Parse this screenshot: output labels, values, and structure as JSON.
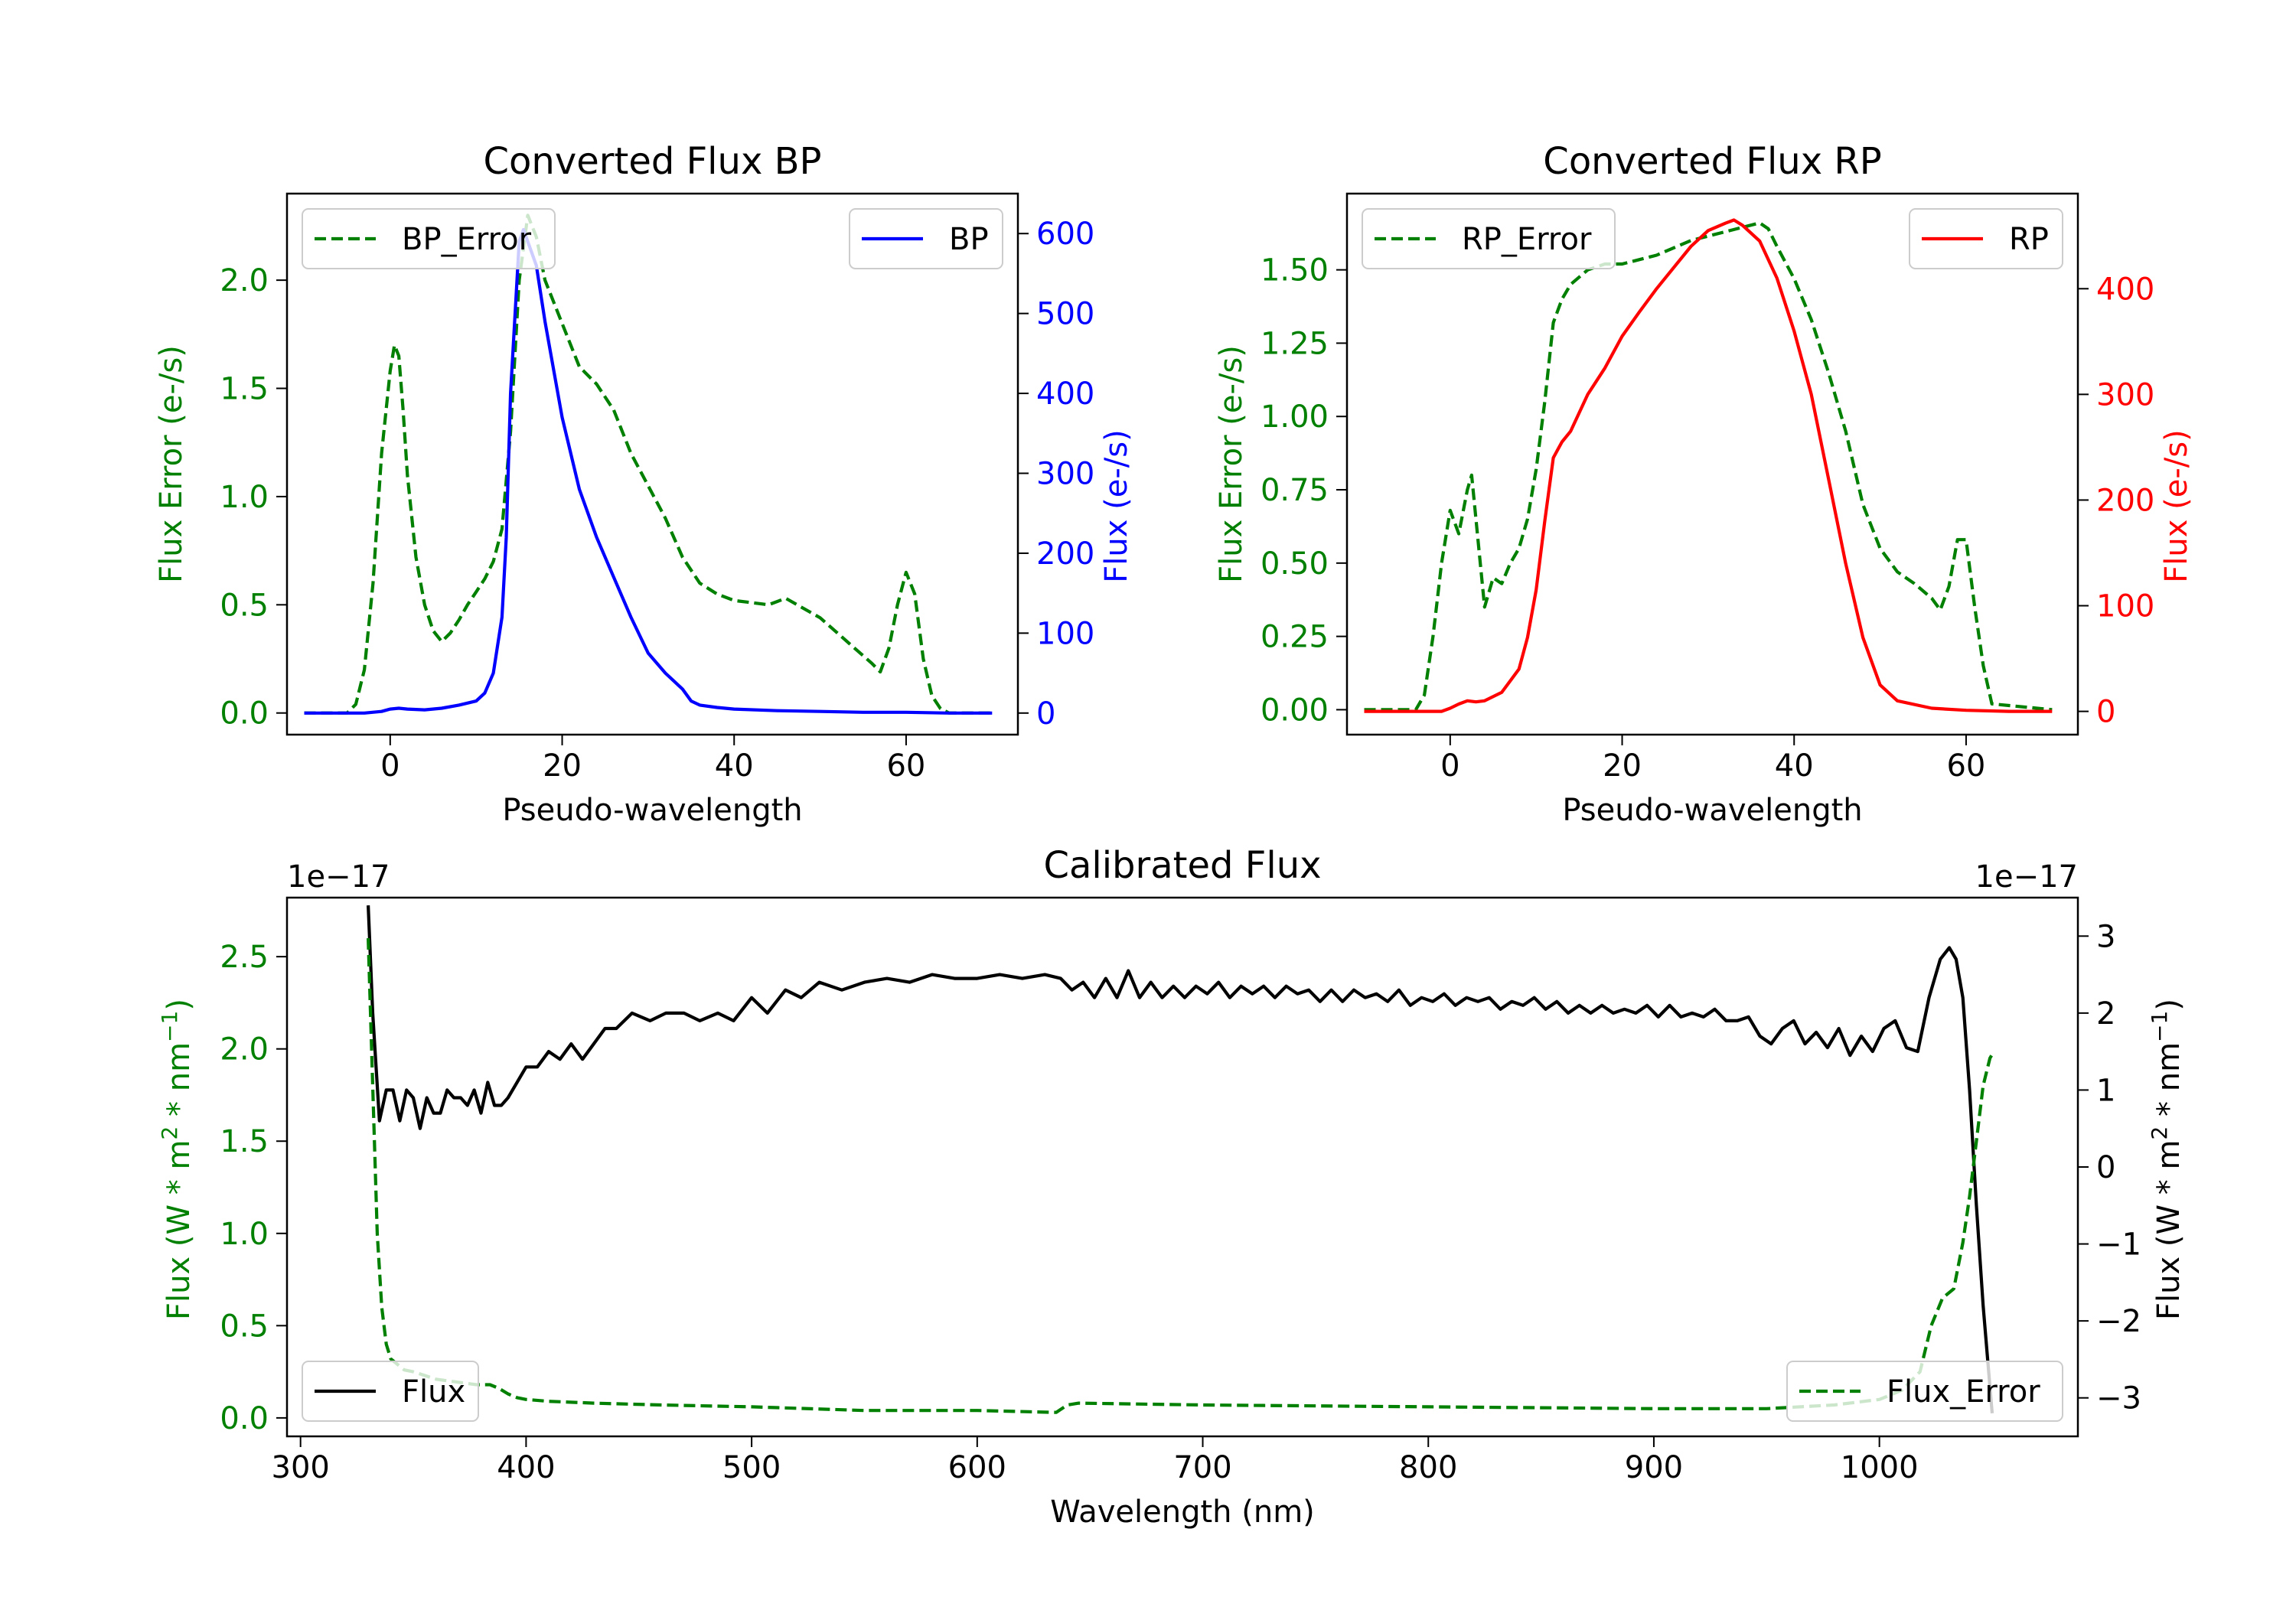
{
  "chart_data": [
    {
      "id": "bp",
      "type": "line",
      "title": "Converted Flux BP",
      "xlabel": "Pseudo-wavelength",
      "ylabel_left": "Flux Error (e-/s)",
      "ylabel_right": "Flux (e-/s)",
      "xlim": [
        -12,
        73
      ],
      "ylim_left": [
        -0.1,
        2.4
      ],
      "ylim_right": [
        -27,
        650
      ],
      "xticks": [
        0,
        20,
        40,
        60
      ],
      "yticks_left": [
        0.0,
        0.5,
        1.0,
        1.5,
        2.0
      ],
      "ytick_labels_left": [
        "0.0",
        "0.5",
        "1.0",
        "1.5",
        "2.0"
      ],
      "yticks_right": [
        0,
        100,
        200,
        300,
        400,
        500,
        600
      ],
      "ytick_labels_right": [
        "0",
        "100",
        "200",
        "300",
        "400",
        "500",
        "600"
      ],
      "left_color": "#008000",
      "right_color": "#0000ff",
      "series": [
        {
          "name": "BP_Error",
          "axis": "left",
          "style": "dashed",
          "color": "#008000",
          "x": [
            -10,
            -5,
            -4,
            -3,
            -2,
            -1,
            0,
            0.5,
            1,
            1.5,
            2,
            3,
            4,
            5,
            6,
            7,
            8,
            9,
            10,
            11,
            12,
            13,
            14,
            15,
            16,
            17,
            18,
            19,
            20,
            22,
            24,
            26,
            28,
            30,
            32,
            34,
            36,
            38,
            40,
            44,
            46,
            50,
            54,
            56,
            57,
            58,
            59,
            60,
            61,
            62,
            63,
            64,
            65,
            70
          ],
          "y": [
            0.0,
            0.0,
            0.04,
            0.2,
            0.6,
            1.2,
            1.58,
            1.7,
            1.65,
            1.4,
            1.1,
            0.72,
            0.5,
            0.38,
            0.33,
            0.37,
            0.43,
            0.5,
            0.56,
            0.62,
            0.7,
            0.85,
            1.3,
            2.0,
            2.3,
            2.2,
            2.0,
            1.9,
            1.8,
            1.6,
            1.52,
            1.4,
            1.2,
            1.05,
            0.9,
            0.72,
            0.6,
            0.55,
            0.52,
            0.5,
            0.53,
            0.44,
            0.3,
            0.23,
            0.19,
            0.3,
            0.5,
            0.65,
            0.55,
            0.25,
            0.08,
            0.02,
            0.0,
            0.0
          ]
        },
        {
          "name": "BP",
          "axis": "right",
          "style": "solid",
          "color": "#0000ff",
          "x": [
            -10,
            -3,
            -1,
            0,
            1,
            2,
            4,
            6,
            8,
            10,
            11,
            12,
            13,
            13.5,
            14,
            15,
            15.5,
            16,
            17,
            18,
            20,
            22,
            24,
            26,
            28,
            30,
            32,
            34,
            35,
            36,
            38,
            40,
            45,
            50,
            55,
            60,
            65,
            70
          ],
          "y": [
            0,
            0,
            2,
            5,
            6,
            5,
            4,
            6,
            10,
            15,
            25,
            50,
            120,
            220,
            400,
            590,
            605,
            590,
            560,
            490,
            370,
            280,
            220,
            170,
            120,
            75,
            50,
            30,
            15,
            10,
            7,
            5,
            3,
            2,
            1,
            1,
            0,
            0
          ]
        }
      ],
      "legends": [
        {
          "series": "BP_Error",
          "label": "BP_Error",
          "position": "upper left"
        },
        {
          "series": "BP",
          "label": "BP",
          "position": "upper right"
        }
      ]
    },
    {
      "id": "rp",
      "type": "line",
      "title": "Converted Flux RP",
      "xlabel": "Pseudo-wavelength",
      "ylabel_left": "Flux Error (e-/s)",
      "ylabel_right": "Flux (e-/s)",
      "xlim": [
        -12,
        73
      ],
      "ylim_left": [
        -0.085,
        1.76
      ],
      "ylim_right": [
        -22,
        490
      ],
      "xticks": [
        0,
        20,
        40,
        60
      ],
      "yticks_left": [
        0.0,
        0.25,
        0.5,
        0.75,
        1.0,
        1.25,
        1.5
      ],
      "ytick_labels_left": [
        "0.00",
        "0.25",
        "0.50",
        "0.75",
        "1.00",
        "1.25",
        "1.50"
      ],
      "yticks_right": [
        0,
        100,
        200,
        300,
        400
      ],
      "ytick_labels_right": [
        "0",
        "100",
        "200",
        "300",
        "400"
      ],
      "left_color": "#008000",
      "right_color": "#ff0000",
      "series": [
        {
          "name": "RP_Error",
          "axis": "left",
          "style": "dashed",
          "color": "#008000",
          "x": [
            -10,
            -4,
            -3,
            -2,
            -1,
            0,
            1,
            2,
            2.5,
            3,
            4,
            5,
            6,
            7,
            8,
            9,
            10,
            11,
            12,
            13,
            14,
            16,
            18,
            20,
            24,
            28,
            32,
            36,
            37,
            38,
            40,
            42,
            44,
            46,
            48,
            50,
            52,
            54,
            56,
            57,
            58,
            59,
            60,
            61,
            62,
            63,
            70
          ],
          "y": [
            0.0,
            0.0,
            0.05,
            0.25,
            0.5,
            0.68,
            0.6,
            0.75,
            0.8,
            0.65,
            0.35,
            0.45,
            0.43,
            0.5,
            0.55,
            0.65,
            0.82,
            1.05,
            1.32,
            1.4,
            1.45,
            1.5,
            1.52,
            1.52,
            1.55,
            1.6,
            1.63,
            1.66,
            1.64,
            1.58,
            1.47,
            1.33,
            1.15,
            0.95,
            0.7,
            0.55,
            0.47,
            0.43,
            0.38,
            0.34,
            0.42,
            0.58,
            0.58,
            0.35,
            0.15,
            0.02,
            0.0
          ]
        },
        {
          "name": "RP",
          "axis": "right",
          "style": "solid",
          "color": "#ff0000",
          "x": [
            -10,
            -3,
            -1,
            0,
            1,
            2,
            3,
            4,
            6,
            8,
            9,
            10,
            11,
            12,
            13,
            14,
            16,
            18,
            20,
            22,
            24,
            26,
            28,
            30,
            32,
            33,
            34,
            36,
            38,
            40,
            42,
            44,
            46,
            48,
            50,
            52,
            56,
            60,
            65,
            70
          ],
          "y": [
            0,
            0,
            0,
            3,
            7,
            10,
            9,
            10,
            18,
            40,
            70,
            115,
            180,
            240,
            255,
            265,
            300,
            325,
            355,
            378,
            400,
            420,
            440,
            455,
            462,
            465,
            460,
            445,
            410,
            360,
            300,
            220,
            140,
            70,
            25,
            10,
            3,
            1,
            0,
            0
          ]
        }
      ],
      "legends": [
        {
          "series": "RP_Error",
          "label": "RP_Error",
          "position": "upper left"
        },
        {
          "series": "RP",
          "label": "RP",
          "position": "upper right"
        }
      ]
    },
    {
      "id": "cal",
      "type": "line",
      "title": "Calibrated Flux",
      "xlabel": "Wavelength (nm)",
      "ylabel_left": "Flux (W * m^2 * nm^-1)",
      "ylabel_right": "Flux (W * m^2 * nm^-1)",
      "offset_left": "1e−17",
      "offset_right": "1e−17",
      "xlim": [
        294,
        1088
      ],
      "ylim_left": [
        -0.1,
        2.82
      ],
      "ylim_right": [
        -3.5,
        3.5
      ],
      "xticks": [
        300,
        400,
        500,
        600,
        700,
        800,
        900,
        1000
      ],
      "yticks_left": [
        0.0,
        0.5,
        1.0,
        1.5,
        2.0,
        2.5
      ],
      "ytick_labels_left": [
        "0.0",
        "0.5",
        "1.0",
        "1.5",
        "2.0",
        "2.5"
      ],
      "yticks_right": [
        -3,
        -2,
        -1,
        0,
        1,
        2,
        3
      ],
      "ytick_labels_right": [
        "−3",
        "−2",
        "−1",
        "0",
        "1",
        "2",
        "3"
      ],
      "left_color": "#008000",
      "right_color": "#000000",
      "series": [
        {
          "name": "Flux",
          "axis": "right",
          "style": "solid",
          "color": "#000000",
          "x": [
            330,
            332,
            335,
            338,
            341,
            344,
            347,
            350,
            353,
            356,
            359,
            362,
            365,
            368,
            371,
            374,
            377,
            380,
            383,
            386,
            389,
            392,
            396,
            400,
            405,
            410,
            415,
            420,
            425,
            430,
            435,
            440,
            447,
            455,
            462,
            470,
            477,
            485,
            492,
            500,
            507,
            515,
            522,
            530,
            540,
            550,
            560,
            570,
            580,
            590,
            600,
            610,
            620,
            630,
            637,
            642,
            647,
            652,
            657,
            662,
            667,
            672,
            677,
            682,
            687,
            692,
            697,
            702,
            707,
            712,
            717,
            722,
            727,
            732,
            737,
            742,
            747,
            752,
            757,
            762,
            767,
            772,
            777,
            782,
            787,
            792,
            797,
            802,
            807,
            812,
            817,
            822,
            827,
            832,
            837,
            842,
            847,
            852,
            857,
            862,
            867,
            872,
            877,
            882,
            887,
            892,
            897,
            902,
            907,
            912,
            917,
            922,
            927,
            932,
            937,
            942,
            947,
            952,
            957,
            962,
            967,
            972,
            977,
            982,
            987,
            992,
            997,
            1002,
            1007,
            1012,
            1017,
            1022,
            1027,
            1031,
            1034,
            1037,
            1040,
            1043,
            1046,
            1050
          ],
          "y": [
            3.4,
            2.0,
            0.6,
            1.0,
            1.0,
            0.6,
            1.0,
            0.9,
            0.5,
            0.9,
            0.7,
            0.7,
            1.0,
            0.9,
            0.9,
            0.8,
            1.0,
            0.7,
            1.1,
            0.8,
            0.8,
            0.9,
            1.1,
            1.3,
            1.3,
            1.5,
            1.4,
            1.6,
            1.4,
            1.6,
            1.8,
            1.8,
            2.0,
            1.9,
            2.0,
            2.0,
            1.9,
            2.0,
            1.9,
            2.2,
            2.0,
            2.3,
            2.2,
            2.4,
            2.3,
            2.4,
            2.45,
            2.4,
            2.5,
            2.45,
            2.45,
            2.5,
            2.45,
            2.5,
            2.45,
            2.3,
            2.4,
            2.2,
            2.45,
            2.2,
            2.55,
            2.2,
            2.4,
            2.2,
            2.35,
            2.2,
            2.35,
            2.25,
            2.4,
            2.2,
            2.35,
            2.25,
            2.35,
            2.2,
            2.35,
            2.25,
            2.3,
            2.15,
            2.3,
            2.15,
            2.3,
            2.2,
            2.25,
            2.15,
            2.3,
            2.1,
            2.2,
            2.15,
            2.25,
            2.1,
            2.2,
            2.15,
            2.2,
            2.05,
            2.15,
            2.1,
            2.2,
            2.05,
            2.15,
            2.0,
            2.1,
            2.0,
            2.1,
            2.0,
            2.05,
            2.0,
            2.1,
            1.95,
            2.1,
            1.95,
            2.0,
            1.95,
            2.05,
            1.9,
            1.9,
            1.95,
            1.7,
            1.6,
            1.8,
            1.9,
            1.6,
            1.75,
            1.55,
            1.8,
            1.45,
            1.7,
            1.5,
            1.8,
            1.9,
            1.55,
            1.5,
            2.2,
            2.7,
            2.85,
            2.7,
            2.2,
            1.0,
            -0.5,
            -1.8,
            -3.2
          ]
        },
        {
          "name": "Flux_Error",
          "axis": "left",
          "style": "dashed",
          "color": "#008000",
          "x": [
            330,
            332,
            334,
            336,
            338,
            340,
            343,
            346,
            350,
            355,
            360,
            366,
            372,
            378,
            384,
            388,
            392,
            396,
            400,
            410,
            430,
            460,
            500,
            550,
            600,
            635,
            640,
            645,
            700,
            800,
            900,
            950,
            980,
            1000,
            1010,
            1018,
            1023,
            1028,
            1033,
            1037,
            1040,
            1043,
            1046,
            1049,
            1050
          ],
          "y": [
            2.6,
            1.8,
            1.0,
            0.6,
            0.4,
            0.32,
            0.29,
            0.26,
            0.25,
            0.23,
            0.21,
            0.2,
            0.19,
            0.18,
            0.18,
            0.16,
            0.13,
            0.11,
            0.1,
            0.09,
            0.08,
            0.07,
            0.06,
            0.04,
            0.04,
            0.03,
            0.07,
            0.08,
            0.07,
            0.06,
            0.05,
            0.05,
            0.07,
            0.1,
            0.15,
            0.25,
            0.5,
            0.65,
            0.7,
            0.95,
            1.2,
            1.5,
            1.8,
            1.95,
            1.97
          ]
        }
      ],
      "legends": [
        {
          "series": "Flux",
          "label": "Flux",
          "position": "lower left"
        },
        {
          "series": "Flux_Error",
          "label": "Flux_Error",
          "position": "lower right"
        }
      ]
    }
  ]
}
